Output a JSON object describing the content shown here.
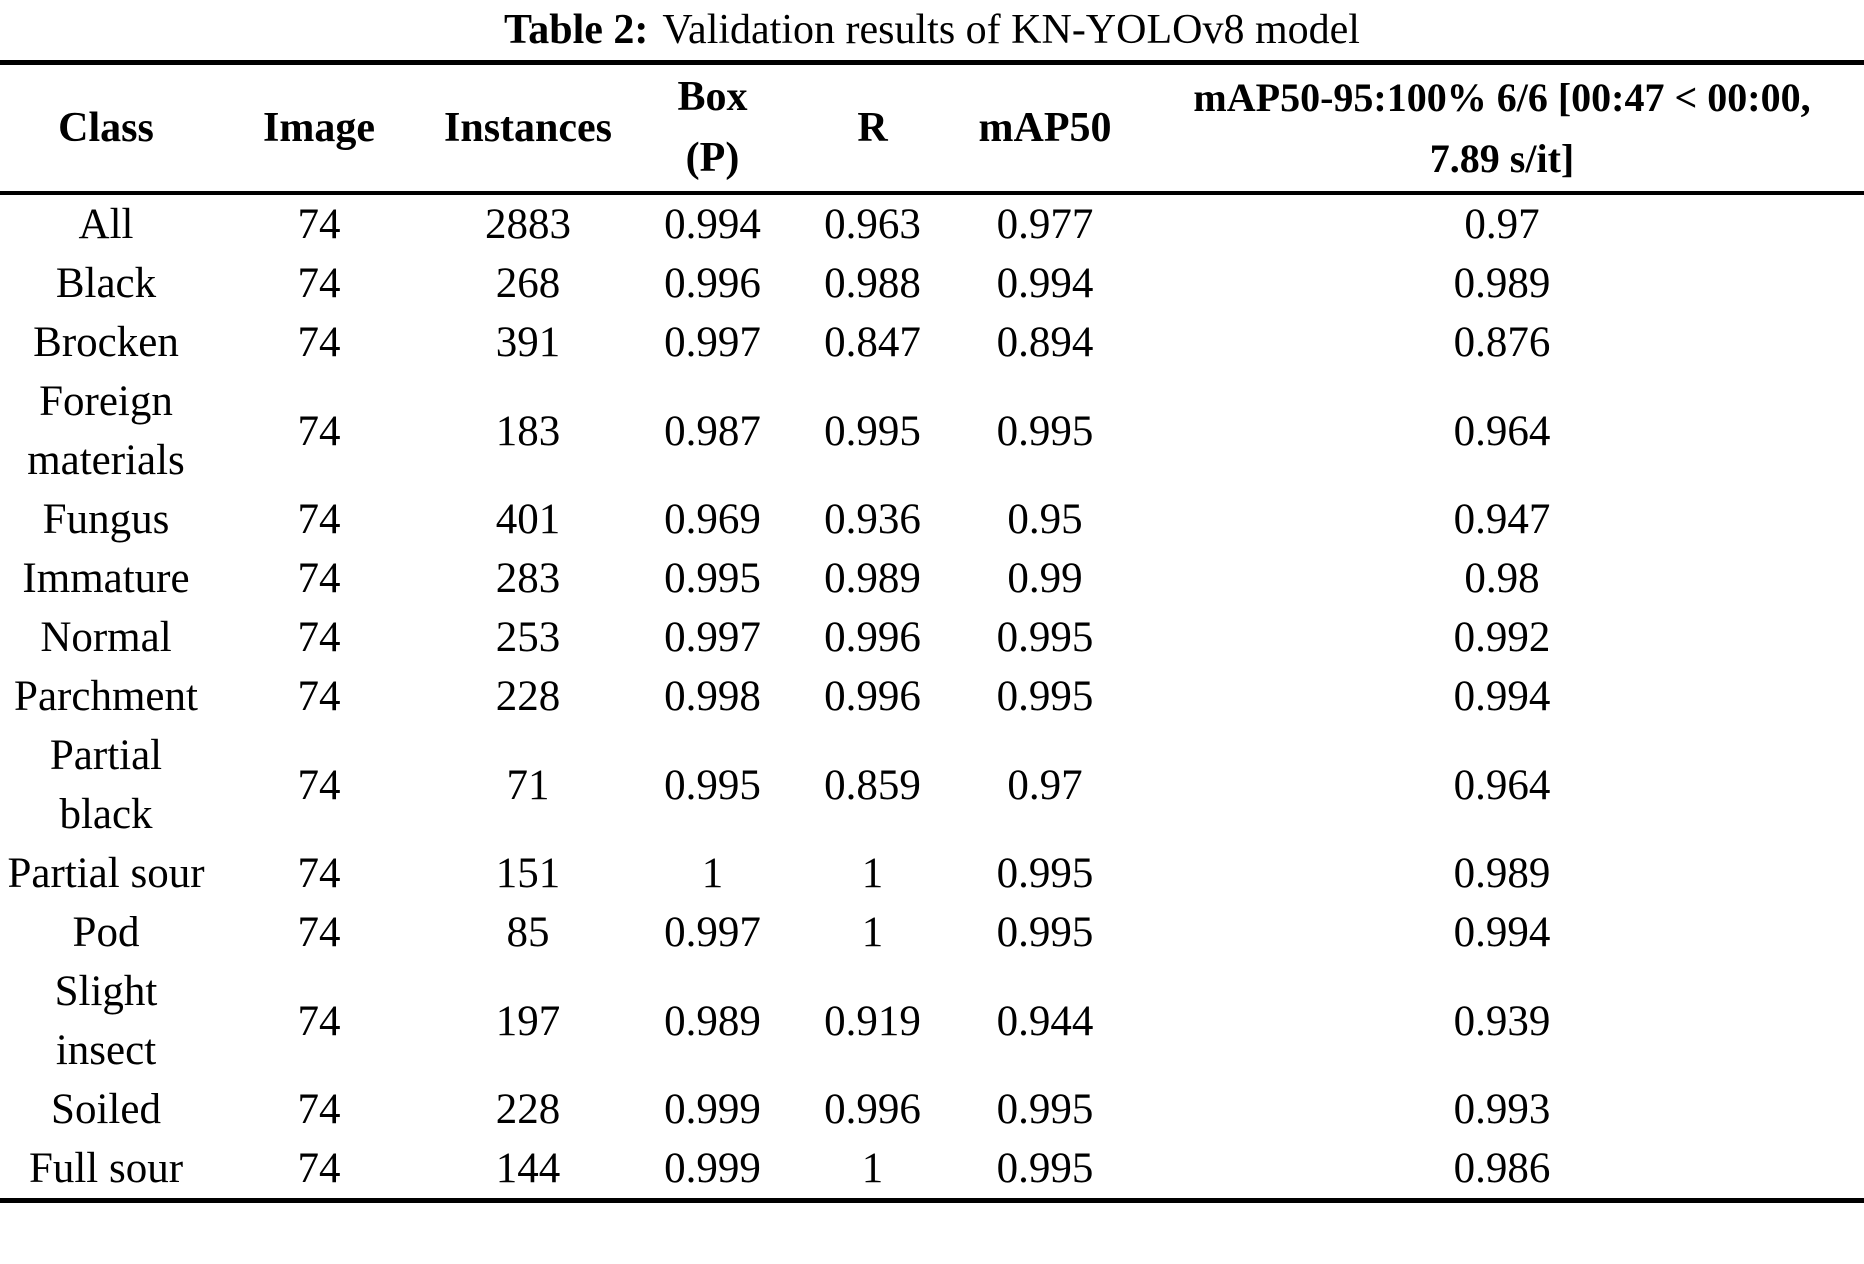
{
  "caption": {
    "label": "Table 2:",
    "text": "Validation results of KN-YOLOv8 model"
  },
  "table": {
    "headers": [
      {
        "id": "class",
        "lines": [
          "Class"
        ]
      },
      {
        "id": "image",
        "lines": [
          "Image"
        ]
      },
      {
        "id": "instances",
        "lines": [
          "Instances"
        ]
      },
      {
        "id": "box-p",
        "lines": [
          "Box",
          "(P)"
        ]
      },
      {
        "id": "r",
        "lines": [
          "R"
        ]
      },
      {
        "id": "map50",
        "lines": [
          "mAP50"
        ]
      },
      {
        "id": "map50-95",
        "lines": [
          "mAP50-95:100% 6/6 [00:47 < 00:00,",
          "7.89 s/it]"
        ]
      }
    ],
    "rows": [
      [
        "All",
        "74",
        "2883",
        "0.994",
        "0.963",
        "0.977",
        "0.97"
      ],
      [
        "Black",
        "74",
        "268",
        "0.996",
        "0.988",
        "0.994",
        "0.989"
      ],
      [
        "Brocken",
        "74",
        "391",
        "0.997",
        "0.847",
        "0.894",
        "0.876"
      ],
      [
        "Foreign materials",
        "74",
        "183",
        "0.987",
        "0.995",
        "0.995",
        "0.964"
      ],
      [
        "Fungus",
        "74",
        "401",
        "0.969",
        "0.936",
        "0.95",
        "0.947"
      ],
      [
        "Immature",
        "74",
        "283",
        "0.995",
        "0.989",
        "0.99",
        "0.98"
      ],
      [
        "Normal",
        "74",
        "253",
        "0.997",
        "0.996",
        "0.995",
        "0.992"
      ],
      [
        "Parchment",
        "74",
        "228",
        "0.998",
        "0.996",
        "0.995",
        "0.994"
      ],
      [
        "Partial black",
        "74",
        "71",
        "0.995",
        "0.859",
        "0.97",
        "0.964"
      ],
      [
        "Partial sour",
        "74",
        "151",
        "1",
        "1",
        "0.995",
        "0.989"
      ],
      [
        "Pod",
        "74",
        "85",
        "0.997",
        "1",
        "0.995",
        "0.994"
      ],
      [
        "Slight insect",
        "74",
        "197",
        "0.989",
        "0.919",
        "0.944",
        "0.939"
      ],
      [
        "Soiled",
        "74",
        "228",
        "0.999",
        "0.996",
        "0.995",
        "0.993"
      ],
      [
        "Full sour",
        "74",
        "144",
        "0.999",
        "1",
        "0.995",
        "0.986"
      ]
    ],
    "text_color": "#000000",
    "background_color": "#ffffff"
  }
}
